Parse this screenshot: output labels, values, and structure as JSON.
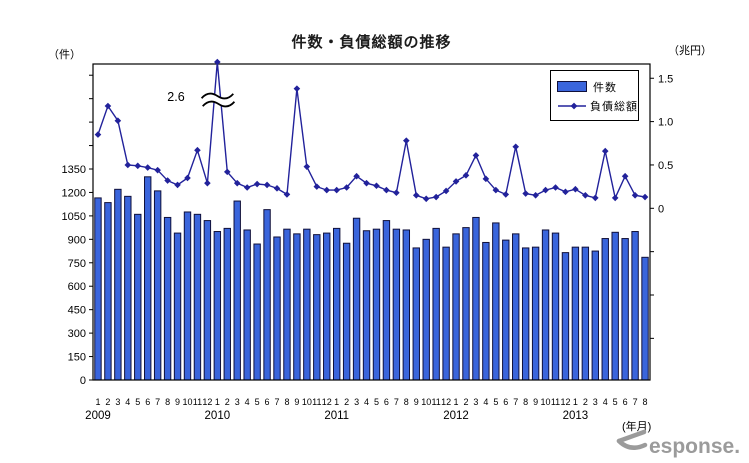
{
  "title": "件数・負債総額の推移",
  "units": {
    "left": "（件）",
    "right": "（兆円）",
    "x": "(年月)"
  },
  "legend": {
    "bar_label": "件数",
    "line_label": "負債総額"
  },
  "annotation": {
    "text": "2.6"
  },
  "watermark": {
    "text": "esponse."
  },
  "colors": {
    "bar_fill": "#3A65DC",
    "bar_stroke": "#10103A",
    "line": "#22229B",
    "axis": "#000000",
    "text": "#000000",
    "watermark": "#9B9B9B"
  },
  "chart_data": {
    "type": "bar+line",
    "title": "件数・負債総額の推移",
    "grid": false,
    "legend_position": "top-right",
    "x_unit": "年月",
    "x_years": [
      {
        "year": "2009",
        "months": [
          1,
          2,
          3,
          4,
          5,
          6,
          7,
          8,
          9,
          10,
          11,
          12
        ]
      },
      {
        "year": "2010",
        "months": [
          1,
          2,
          3,
          4,
          5,
          6,
          7,
          8,
          9,
          10,
          11,
          12
        ]
      },
      {
        "year": "2011",
        "months": [
          1,
          2,
          3,
          4,
          5,
          6,
          7,
          8,
          9,
          10,
          11,
          12
        ]
      },
      {
        "year": "2012",
        "months": [
          1,
          2,
          3,
          4,
          5,
          6,
          7,
          8,
          9,
          10,
          11,
          12
        ]
      },
      {
        "year": "2013",
        "months": [
          1,
          2,
          3,
          4,
          5,
          6,
          7,
          8
        ]
      }
    ],
    "left_axis": {
      "unit": "件",
      "min": 0,
      "tick_step": 150,
      "labeled_max": 1350,
      "tick_max": 1950
    },
    "right_axis": {
      "unit": "兆円",
      "labeled_tick_values": [
        0,
        0.5,
        1.0,
        1.5
      ],
      "labeled_tick_texts": [
        "0",
        "0.5",
        "1.0",
        "1.5"
      ],
      "unlabeled_tick_values": [
        -0.5,
        -1.0,
        -1.5
      ]
    },
    "series": [
      {
        "name": "件数",
        "type": "bar",
        "axis": "left",
        "values": [
          1165,
          1135,
          1220,
          1175,
          1060,
          1300,
          1210,
          1040,
          940,
          1075,
          1060,
          1020,
          950,
          970,
          1145,
          960,
          870,
          1090,
          915,
          965,
          935,
          965,
          930,
          940,
          970,
          875,
          1035,
          955,
          965,
          1020,
          965,
          960,
          845,
          900,
          970,
          850,
          935,
          975,
          1040,
          880,
          1005,
          895,
          935,
          845,
          850,
          960,
          940,
          815,
          850,
          850,
          825,
          905,
          945,
          905,
          950,
          785
        ]
      },
      {
        "name": "負債総額",
        "type": "line",
        "axis": "right",
        "values": [
          0.85,
          1.18,
          1.01,
          0.5,
          0.49,
          0.47,
          0.44,
          0.32,
          0.27,
          0.35,
          0.67,
          0.29,
          2.6,
          0.42,
          0.29,
          0.24,
          0.28,
          0.27,
          0.23,
          0.16,
          1.38,
          0.48,
          0.25,
          0.21,
          0.21,
          0.24,
          0.37,
          0.29,
          0.26,
          0.21,
          0.18,
          0.78,
          0.15,
          0.11,
          0.13,
          0.2,
          0.31,
          0.38,
          0.61,
          0.34,
          0.21,
          0.16,
          0.71,
          0.17,
          0.15,
          0.21,
          0.24,
          0.19,
          0.22,
          0.15,
          0.12,
          0.66,
          0.12,
          0.37,
          0.15,
          0.13
        ],
        "clipped_peak": {
          "index": 12,
          "value": 2.6,
          "display": "2.6"
        }
      }
    ]
  }
}
